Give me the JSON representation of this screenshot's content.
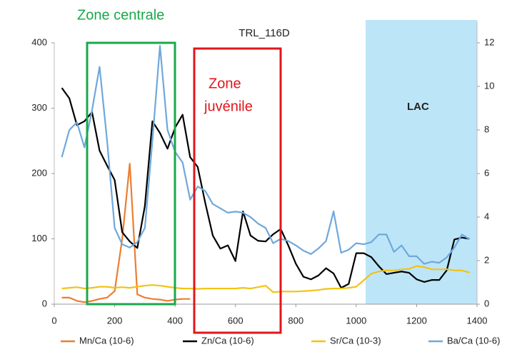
{
  "chart_data": {
    "type": "line",
    "title": "TRL_116D",
    "annotations": {
      "zone_centrale": "Zone centrale",
      "zone_juvenile": [
        "Zone",
        "juvénile"
      ],
      "lac": "LAC"
    },
    "x": [
      25,
      50,
      75,
      100,
      125,
      150,
      175,
      200,
      225,
      250,
      275,
      300,
      325,
      350,
      375,
      400,
      425,
      450,
      475,
      500,
      525,
      550,
      575,
      600,
      625,
      650,
      675,
      700,
      725,
      750,
      775,
      800,
      825,
      850,
      875,
      900,
      925,
      950,
      975,
      1000,
      1025,
      1050,
      1075,
      1100,
      1125,
      1150,
      1175,
      1200,
      1225,
      1250,
      1275,
      1300,
      1325,
      1350,
      1375
    ],
    "series": [
      {
        "name": "Mn/Ca (10-6)",
        "color": "#ed7d31",
        "values": [
          10,
          10,
          5,
          3,
          5,
          8,
          10,
          20,
          100,
          215,
          15,
          10,
          8,
          7,
          5,
          7,
          8,
          8,
          null,
          null,
          null,
          null,
          null,
          null,
          null,
          null,
          null,
          null,
          null,
          null,
          null,
          null,
          null,
          null,
          null,
          null,
          null,
          null,
          null,
          null,
          null,
          null,
          null,
          null,
          null,
          null,
          null,
          null,
          null,
          null,
          null,
          null,
          null,
          null,
          null
        ]
      },
      {
        "name": "Zn/Ca (10-6)",
        "color": "#000000",
        "values": [
          331,
          315,
          274,
          280,
          294,
          235,
          212,
          190,
          110,
          96,
          86,
          150,
          280,
          262,
          238,
          270,
          290,
          225,
          210,
          155,
          105,
          85,
          90,
          66,
          142,
          105,
          97,
          96,
          107,
          115,
          90,
          62,
          42,
          38,
          44,
          55,
          47,
          25,
          31,
          78,
          78,
          72,
          58,
          46,
          48,
          50,
          48,
          38,
          34,
          37,
          37,
          52,
          99,
          102,
          100
        ]
      },
      {
        "name": "Sr/Ca (10-3)",
        "color": "#f2c314",
        "axis": "y2",
        "values": [
          0.72,
          0.75,
          0.78,
          0.72,
          0.75,
          0.8,
          0.8,
          0.75,
          0.78,
          0.75,
          0.8,
          0.85,
          0.88,
          0.85,
          0.8,
          0.75,
          0.72,
          0.72,
          0.7,
          0.72,
          0.72,
          0.72,
          0.72,
          0.72,
          0.75,
          0.72,
          0.78,
          0.85,
          0.55,
          0.58,
          0.58,
          0.58,
          0.6,
          0.62,
          0.65,
          0.7,
          0.72,
          0.72,
          0.75,
          0.8,
          1.1,
          1.4,
          1.5,
          1.55,
          1.55,
          1.6,
          1.62,
          1.75,
          1.7,
          1.6,
          1.6,
          1.6,
          1.55,
          1.55,
          1.45
        ]
      },
      {
        "name": "Ba/Ca (10-6)",
        "color": "#6fa8dc",
        "axis": "y2",
        "values": [
          6.75,
          8.0,
          8.35,
          7.2,
          8.9,
          10.9,
          7.5,
          3.5,
          2.75,
          2.6,
          2.85,
          3.5,
          7.5,
          11.87,
          8.0,
          7.0,
          6.5,
          4.8,
          5.4,
          5.2,
          4.6,
          4.4,
          4.2,
          4.25,
          4.2,
          4.0,
          3.7,
          3.5,
          2.8,
          3.0,
          2.9,
          2.7,
          2.46,
          2.3,
          2.56,
          2.9,
          4.26,
          2.36,
          2.5,
          2.8,
          2.75,
          2.85,
          3.2,
          3.2,
          2.4,
          2.7,
          2.2,
          2.2,
          1.85,
          1.95,
          1.9,
          2.15,
          2.6,
          3.2,
          2.98
        ]
      }
    ],
    "xlim": [
      0,
      1400
    ],
    "xticks": [
      0,
      200,
      400,
      600,
      800,
      1000,
      1200,
      1400
    ],
    "ylim": [
      0,
      400
    ],
    "yticks": [
      0,
      100,
      200,
      300,
      400
    ],
    "y2lim": [
      0,
      12
    ],
    "y2ticks": [
      0,
      2,
      4,
      6,
      8,
      10,
      12
    ],
    "grid": false
  }
}
